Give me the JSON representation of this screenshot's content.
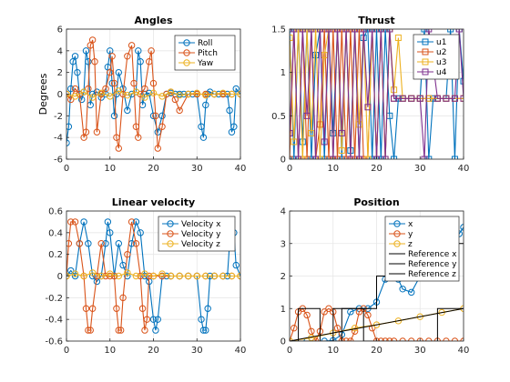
{
  "colors": {
    "blue": "#0072bd",
    "orange": "#d95319",
    "yellow": "#edb120",
    "purple": "#7e2f8e",
    "black": "#000000"
  },
  "chart_data": [
    {
      "type": "line",
      "title": "Angles",
      "xlabel": "",
      "ylabel": "Degrees",
      "xlim": [
        0,
        40
      ],
      "ylim": [
        -6,
        6
      ],
      "xticks": [
        0,
        10,
        20,
        30,
        40
      ],
      "yticks": [
        -6,
        -4,
        -2,
        0,
        2,
        4,
        6
      ],
      "grid": true,
      "legend": "top-right",
      "marker": "circle",
      "series": [
        {
          "name": "Roll",
          "color": "blue",
          "x": [
            0,
            0.5,
            1,
            1.5,
            2,
            2.5,
            3,
            3.5,
            4,
            4.5,
            5,
            5.5,
            6,
            7,
            8,
            9,
            9.5,
            10,
            10.5,
            11,
            11.5,
            12,
            13,
            14,
            15,
            16,
            16.5,
            17,
            17.5,
            18,
            19,
            20,
            21,
            22,
            23,
            24,
            25,
            26,
            27,
            28,
            29,
            30,
            31,
            31.5,
            32,
            32.5,
            33,
            34,
            35,
            36,
            37,
            37.5,
            38,
            38.5,
            39,
            40
          ],
          "y": [
            -4.5,
            -3.0,
            0.5,
            3.0,
            3.5,
            2.0,
            0.0,
            -0.5,
            0.2,
            4.0,
            3.0,
            -1.0,
            0.0,
            0.2,
            -0.3,
            0.0,
            2.5,
            4.0,
            1.0,
            -2.0,
            0.0,
            2.0,
            0.5,
            -1.5,
            0.0,
            0.2,
            4.0,
            3.0,
            -1.0,
            0.0,
            0.1,
            -2.0,
            -3.5,
            -2.0,
            0.0,
            0.1,
            0.0,
            0.0,
            0.0,
            0.0,
            0.0,
            0.0,
            -3.0,
            -4.0,
            -1.0,
            0.0,
            0.2,
            0.0,
            0.0,
            0.0,
            0.0,
            -1.5,
            -3.5,
            -3.0,
            0.5,
            0.0
          ]
        },
        {
          "name": "Pitch",
          "color": "orange",
          "x": [
            0,
            1,
            2,
            3,
            4,
            4.5,
            5,
            5.5,
            6,
            6.5,
            7,
            8,
            9,
            10,
            10.5,
            11,
            11.5,
            12,
            13,
            14,
            15,
            15.5,
            16,
            16.5,
            17,
            18,
            19,
            19.5,
            20,
            20.5,
            21,
            22,
            23,
            24,
            25,
            26,
            28,
            30,
            32,
            34,
            36,
            38,
            40
          ],
          "y": [
            0.0,
            -0.5,
            0.5,
            0.0,
            -4.0,
            -3.5,
            0.5,
            4.5,
            5.0,
            3.0,
            -3.5,
            0.0,
            0.5,
            2.0,
            3.5,
            1.0,
            -4.0,
            -5.0,
            0.0,
            3.5,
            4.5,
            1.0,
            -3.0,
            -4.0,
            0.0,
            0.5,
            3.0,
            4.0,
            1.0,
            -2.0,
            -5.0,
            -3.0,
            0.0,
            0.2,
            -0.5,
            -1.5,
            0.0,
            0.0,
            0.0,
            0.0,
            0.0,
            0.0,
            0.0
          ]
        },
        {
          "name": "Yaw",
          "color": "yellow",
          "x": [
            0,
            2,
            4,
            6,
            8,
            10,
            12,
            14,
            16,
            18,
            20,
            22,
            24,
            26,
            28,
            30,
            32,
            34,
            36,
            38,
            40
          ],
          "y": [
            0.0,
            -0.2,
            0.2,
            -0.3,
            0.1,
            -0.2,
            0.3,
            -0.1,
            0.2,
            -0.3,
            0.1,
            -0.2,
            0.2,
            -0.1,
            0.0,
            0.1,
            -0.1,
            0.0,
            0.1,
            0.0,
            0.0
          ]
        }
      ]
    },
    {
      "type": "line",
      "title": "Thrust",
      "xlabel": "",
      "ylabel": "",
      "xlim": [
        0,
        40
      ],
      "ylim": [
        0,
        1.5
      ],
      "xticks": [
        0,
        10,
        20,
        30,
        40
      ],
      "yticks": [
        0,
        0.5,
        1,
        1.5
      ],
      "ytick_labels": [
        "0",
        "0.5",
        "1",
        "1.5"
      ],
      "grid": true,
      "legend": "top-right",
      "marker": "square",
      "series": [
        {
          "name": "u1",
          "color": "blue",
          "x": [
            0,
            1,
            2,
            3,
            4,
            5,
            6,
            7,
            8,
            9,
            10,
            11,
            12,
            13,
            14,
            15,
            16,
            17,
            18,
            19,
            20,
            21,
            22,
            23,
            24,
            25,
            26,
            28,
            30,
            31,
            32,
            33,
            34,
            36,
            37,
            38,
            39,
            40
          ],
          "y": [
            1.5,
            0.0,
            1.5,
            0.2,
            1.5,
            0.0,
            1.2,
            1.5,
            0.0,
            1.5,
            0.3,
            1.5,
            0.0,
            1.5,
            0.1,
            1.5,
            0.0,
            1.4,
            1.5,
            0.0,
            1.5,
            0.0,
            1.5,
            0.5,
            0.0,
            0.7,
            0.7,
            0.7,
            0.7,
            1.5,
            0.0,
            0.7,
            0.7,
            0.7,
            1.5,
            0.0,
            1.5,
            0.9
          ]
        },
        {
          "name": "u2",
          "color": "orange",
          "x": [
            0,
            1,
            2,
            3,
            4,
            5,
            6,
            7,
            8,
            9,
            10,
            11,
            12,
            13,
            14,
            15,
            16,
            17,
            18,
            19,
            20,
            21,
            22,
            23,
            24,
            26,
            28,
            30,
            32,
            34,
            36,
            38,
            40
          ],
          "y": [
            0.0,
            1.5,
            0.0,
            1.5,
            0.0,
            1.5,
            0.0,
            0.4,
            1.5,
            0.0,
            1.5,
            0.0,
            1.5,
            0.0,
            1.5,
            0.0,
            1.5,
            0.0,
            0.0,
            1.5,
            0.0,
            1.5,
            0.0,
            1.5,
            0.7,
            0.7,
            0.7,
            0.7,
            0.7,
            0.7,
            0.7,
            0.7,
            0.7
          ]
        },
        {
          "name": "u3",
          "color": "yellow",
          "x": [
            0,
            1,
            2,
            3,
            4,
            5,
            6,
            7,
            8,
            9,
            10,
            11,
            12,
            13,
            14,
            15,
            16,
            17,
            18,
            19,
            20,
            21,
            22,
            23,
            24,
            25,
            26,
            28,
            30,
            32,
            34,
            36,
            38,
            40
          ],
          "y": [
            1.4,
            0.2,
            1.5,
            0.0,
            1.5,
            0.3,
            1.5,
            0.0,
            1.2,
            1.5,
            0.0,
            1.5,
            0.1,
            1.5,
            0.0,
            1.5,
            0.4,
            1.5,
            0.0,
            1.5,
            0.0,
            1.5,
            0.0,
            1.5,
            0.8,
            1.4,
            0.7,
            0.7,
            0.7,
            0.7,
            0.7,
            0.7,
            0.7,
            0.7
          ]
        },
        {
          "name": "u4",
          "color": "purple",
          "x": [
            0,
            1,
            2,
            3,
            4,
            5,
            6,
            7,
            8,
            9,
            10,
            11,
            12,
            13,
            14,
            15,
            16,
            17,
            18,
            19,
            20,
            21,
            22,
            23,
            24,
            26,
            28,
            30,
            31,
            32,
            34,
            36,
            38,
            39,
            40
          ],
          "y": [
            0.3,
            1.5,
            0.0,
            1.5,
            0.5,
            1.5,
            0.0,
            1.5,
            0.2,
            1.5,
            0.0,
            1.5,
            0.3,
            1.5,
            0.0,
            1.5,
            0.0,
            1.5,
            0.6,
            1.5,
            0.0,
            1.5,
            0.0,
            1.5,
            0.7,
            0.7,
            0.7,
            0.7,
            0.0,
            1.5,
            0.7,
            0.7,
            0.7,
            1.5,
            0.7
          ]
        }
      ]
    },
    {
      "type": "line",
      "title": "Linear velocity",
      "xlabel": "",
      "ylabel": "",
      "xlim": [
        0,
        40
      ],
      "ylim": [
        -0.6,
        0.6
      ],
      "xticks": [
        0,
        10,
        20,
        30,
        40
      ],
      "yticks": [
        -0.6,
        -0.4,
        -0.2,
        0,
        0.2,
        0.4,
        0.6
      ],
      "ytick_labels": [
        "-0.6",
        "-0.4",
        "-0.2",
        "0",
        "0.2",
        "0.4",
        "0.6"
      ],
      "grid": true,
      "legend": "top-right",
      "marker": "circle",
      "series": [
        {
          "name": "Velocity x",
          "color": "blue",
          "x": [
            0,
            1,
            2,
            3,
            4,
            5,
            6,
            7,
            8,
            9,
            9.5,
            10,
            11,
            12,
            13,
            14,
            15,
            16,
            17,
            18,
            19,
            20,
            20.5,
            21,
            22,
            23,
            24,
            26,
            28,
            30,
            31,
            31.5,
            32,
            32.5,
            33,
            34,
            36,
            37,
            37.5,
            38,
            38.5,
            39,
            40
          ],
          "y": [
            0.0,
            0.05,
            0.0,
            0.3,
            0.5,
            0.3,
            0.0,
            -0.05,
            0.0,
            0.3,
            0.5,
            0.4,
            0.0,
            0.3,
            0.1,
            0.0,
            0.3,
            0.5,
            0.4,
            0.0,
            -0.05,
            -0.4,
            -0.5,
            -0.4,
            0.0,
            0.0,
            0.0,
            0.0,
            0.0,
            0.0,
            -0.4,
            -0.5,
            -0.5,
            -0.3,
            0.0,
            0.0,
            0.0,
            0.0,
            0.3,
            0.5,
            0.4,
            0.1,
            0.0
          ]
        },
        {
          "name": "Velocity y",
          "color": "orange",
          "x": [
            0,
            0.5,
            1,
            2,
            3,
            4,
            4.5,
            5,
            5.5,
            6,
            7,
            8,
            9,
            10,
            11,
            11.5,
            12,
            12.5,
            13,
            14,
            15,
            16,
            17,
            17.5,
            18,
            18.5,
            19,
            20,
            22,
            24,
            26,
            28,
            30,
            32,
            34,
            36,
            38,
            40
          ],
          "y": [
            0.0,
            0.3,
            0.5,
            0.5,
            0.3,
            0.0,
            -0.3,
            -0.5,
            -0.5,
            -0.3,
            0.0,
            0.3,
            0.0,
            0.0,
            0.0,
            -0.3,
            -0.5,
            -0.5,
            -0.2,
            0.2,
            0.5,
            0.3,
            0.0,
            -0.3,
            -0.5,
            -0.4,
            0.0,
            0.0,
            0.0,
            0.0,
            0.0,
            0.0,
            0.0,
            0.0,
            0.0,
            0.0,
            0.0,
            0.0
          ]
        },
        {
          "name": "Velocity z",
          "color": "yellow",
          "x": [
            0,
            2,
            4,
            6,
            8,
            10,
            12,
            14,
            16,
            18,
            20,
            22,
            24,
            26,
            28,
            30,
            32,
            34,
            36,
            38,
            40
          ],
          "y": [
            0.0,
            0.02,
            0.0,
            0.03,
            0.0,
            0.02,
            0.0,
            0.03,
            0.0,
            0.02,
            0.0,
            0.02,
            0.0,
            0.0,
            0.0,
            0.0,
            0.0,
            0.0,
            0.0,
            0.0,
            0.0
          ]
        }
      ]
    },
    {
      "type": "line",
      "title": "Position",
      "xlabel": "",
      "ylabel": "",
      "xlim": [
        0,
        40
      ],
      "ylim": [
        0,
        4
      ],
      "xticks": [
        0,
        10,
        20,
        30,
        40
      ],
      "yticks": [
        0,
        1,
        2,
        3,
        4
      ],
      "grid": true,
      "legend": "top-right",
      "series": [
        {
          "name": "x",
          "color": "blue",
          "marker": "circle",
          "x": [
            0,
            4,
            8,
            10,
            12,
            14,
            16,
            18,
            20,
            22,
            24,
            25,
            26,
            28,
            30,
            32,
            34,
            36,
            37,
            38,
            39,
            40
          ],
          "y": [
            0.0,
            0.0,
            0.0,
            0.02,
            0.2,
            0.9,
            1.0,
            1.0,
            1.2,
            1.9,
            2.0,
            1.9,
            1.6,
            1.5,
            2.0,
            2.0,
            2.0,
            2.0,
            2.5,
            3.0,
            3.3,
            3.5
          ]
        },
        {
          "name": "y",
          "color": "orange",
          "marker": "circle",
          "x": [
            0,
            1,
            2,
            3,
            4,
            5,
            6,
            7,
            8,
            9,
            10,
            11,
            12,
            13,
            14,
            15,
            16,
            17,
            18,
            19,
            20,
            21,
            22,
            23,
            24,
            26,
            28,
            30,
            32,
            34,
            36,
            38,
            40
          ],
          "y": [
            0.0,
            0.4,
            0.9,
            1.0,
            0.8,
            0.3,
            0.0,
            0.3,
            0.9,
            1.0,
            0.9,
            0.4,
            0.0,
            0.0,
            0.0,
            0.3,
            0.9,
            1.0,
            0.8,
            0.4,
            0.0,
            0.0,
            0.0,
            0.0,
            0.0,
            0.0,
            0.0,
            0.0,
            0.0,
            0.0,
            0.0,
            0.0,
            0.0
          ]
        },
        {
          "name": "z",
          "color": "yellow",
          "marker": "circle",
          "x": [
            0,
            5,
            10,
            15,
            20,
            25,
            30,
            35,
            40
          ],
          "y": [
            0.0,
            0.1,
            0.25,
            0.4,
            0.5,
            0.62,
            0.75,
            0.88,
            1.0
          ]
        },
        {
          "name": "Reference x",
          "color": "black",
          "marker": "none",
          "x": [
            0,
            10,
            10,
            12,
            12,
            20,
            20,
            23,
            23,
            30,
            30,
            36,
            36,
            40
          ],
          "y": [
            0,
            0,
            1,
            1,
            1,
            1,
            2,
            2,
            2,
            2,
            2,
            2,
            3,
            3
          ]
        },
        {
          "name": "Reference y",
          "color": "black",
          "marker": "none",
          "x": [
            0,
            2,
            2,
            7,
            7,
            12,
            12,
            17,
            17,
            20,
            20,
            34,
            34,
            40
          ],
          "y": [
            0,
            0,
            1,
            1,
            0,
            0,
            1,
            1,
            0,
            0,
            0,
            0,
            1,
            1
          ]
        },
        {
          "name": "Reference z",
          "color": "black",
          "marker": "none",
          "x": [
            0,
            40
          ],
          "y": [
            0,
            1
          ]
        }
      ]
    }
  ]
}
